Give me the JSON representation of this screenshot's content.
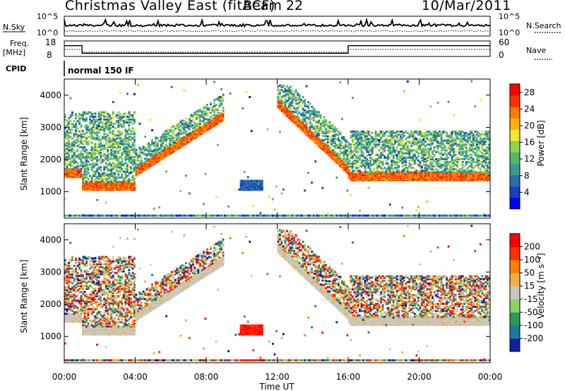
{
  "header": {
    "station": "Christmas Valley East (fitACF)",
    "beam": "Beam 22",
    "date": "10/Mar/2011"
  },
  "strips": {
    "nsky": {
      "label": "N.Sky",
      "ticks": [
        "10^5",
        "10^0"
      ],
      "right_label": "N.Search",
      "right_ticks": [
        "10^5",
        "10^0"
      ]
    },
    "freq": {
      "label_line1": "Freq.",
      "label_line2": "[MHz]",
      "ticks": [
        "18",
        "8"
      ],
      "right_label": "Nave",
      "right_ticks": [
        "60",
        "0"
      ],
      "segments": [
        {
          "from_hour": 0.0,
          "to_hour": 1.0,
          "freq_mhz": 16.5
        },
        {
          "from_hour": 1.0,
          "to_hour": 16.0,
          "freq_mhz": 10.5
        },
        {
          "from_hour": 16.0,
          "to_hour": 24.0,
          "freq_mhz": 16.5
        }
      ]
    },
    "cpid": {
      "label": "CPID",
      "value": "normal 150 IF"
    }
  },
  "chart_data": [
    {
      "type": "heatmap",
      "name": "power",
      "xlabel": "",
      "ylabel": "Slant Range [km]",
      "x_range_hours": [
        0,
        24
      ],
      "ylim_km": [
        180,
        4500
      ],
      "yticks": [
        "4000",
        "3000",
        "2000",
        "1000"
      ],
      "ytick_values": [
        4000,
        3000,
        2000,
        1000
      ],
      "colorbar": {
        "label": "Power [dB]",
        "ticks": [
          "28",
          "24",
          "20",
          "16",
          "12",
          "8",
          "4"
        ],
        "tick_values": [
          28,
          24,
          20,
          16,
          12,
          8,
          4
        ],
        "range": [
          0,
          30
        ],
        "colors": [
          "#0000ff",
          "#1a40c0",
          "#2a6fa8",
          "#3f9a8e",
          "#52b870",
          "#8fd24a",
          "#f0e830",
          "#ffb400",
          "#ff7a00",
          "#ff3000",
          "#ff0000"
        ]
      },
      "features": [
        {
          "desc": "strong band",
          "from_hour": 0.0,
          "to_hour": 1.0,
          "range_km": 1450,
          "power_db": 24
        },
        {
          "desc": "strong band",
          "from_hour": 1.0,
          "to_hour": 4.0,
          "range_km": 1200,
          "power_db": 24
        },
        {
          "desc": "patch",
          "from_hour": 9.8,
          "to_hour": 11.2,
          "range_km": 1200,
          "power_db": 5
        },
        {
          "desc": "descending band",
          "from_hour": 12.0,
          "to_hour": 16.0,
          "range_km": 1500,
          "power_db": 22
        },
        {
          "desc": "band",
          "from_hour": 16.0,
          "to_hour": 24.0,
          "range_km": 1400,
          "power_db": 24
        }
      ]
    },
    {
      "type": "heatmap",
      "name": "velocity",
      "xlabel": "Time UT",
      "ylabel": "Slant Range [km]",
      "x_range_hours": [
        0,
        24
      ],
      "ylim_km": [
        180,
        4500
      ],
      "xticks": [
        "00:00",
        "04:00",
        "08:00",
        "12:00",
        "16:00",
        "20:00",
        "00:00"
      ],
      "yticks": [
        "4000",
        "3000",
        "2000",
        "1000"
      ],
      "ytick_values": [
        4000,
        3000,
        2000,
        1000
      ],
      "colorbar": {
        "label": "Velocity [m s⁻¹]",
        "ticks": [
          "200",
          "100",
          "50",
          "15",
          "-15",
          "-50",
          "-100",
          "-200"
        ],
        "tick_values": [
          200,
          100,
          50,
          15,
          -15,
          -50,
          -100,
          -200
        ],
        "colors": [
          "#1020a0",
          "#1a7a9a",
          "#2a9a5a",
          "#90d060",
          "#c8c8c0",
          "#f0b040",
          "#ff8000",
          "#ff3000",
          "#ff0000"
        ]
      }
    }
  ]
}
